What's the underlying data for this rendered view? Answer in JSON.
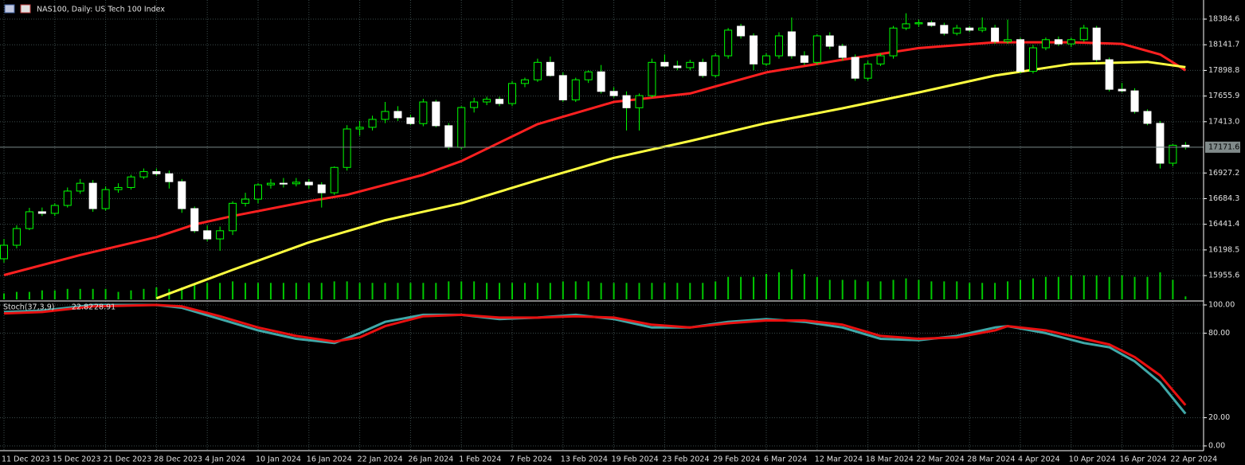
{
  "chart_data": [
    {
      "type": "candlestick",
      "title": "NAS100, Daily:  US Tech 100 Index",
      "categories": [
        "11 Dec 2023",
        null,
        null,
        null,
        "15 Dec 2023",
        null,
        null,
        null,
        "21 Dec 2023",
        null,
        null,
        null,
        "28 Dec 2023",
        null,
        null,
        null,
        "4 Jan 2024",
        null,
        null,
        null,
        "10 Jan 2024",
        null,
        null,
        null,
        "16 Jan 2024",
        null,
        null,
        null,
        "22 Jan 2024",
        null,
        null,
        null,
        "26 Jan 2024",
        null,
        null,
        null,
        "1 Feb 2024",
        null,
        null,
        null,
        "7 Feb 2024",
        null,
        null,
        null,
        "13 Feb 2024",
        null,
        null,
        null,
        "19 Feb 2024",
        null,
        null,
        null,
        "23 Feb 2024",
        null,
        null,
        null,
        "29 Feb 2024",
        null,
        null,
        null,
        "6 Mar 2024",
        null,
        null,
        null,
        "12 Mar 2024",
        null,
        null,
        null,
        "18 Mar 2024",
        null,
        null,
        null,
        "22 Mar 2024",
        null,
        null,
        null,
        "28 Mar 2024",
        null,
        null,
        null,
        "4 Apr 2024",
        null,
        null,
        null,
        "10 Apr 2024",
        null,
        null,
        null,
        "16 Apr 2024",
        null,
        null,
        null,
        "22 Apr 2024",
        null
      ],
      "candles": [
        [
          16115,
          16303,
          16078,
          16243
        ],
        [
          16243,
          16432,
          16213,
          16401
        ],
        [
          16401,
          16597,
          16386,
          16560
        ],
        [
          16560,
          16600,
          16520,
          16545
        ],
        [
          16545,
          16640,
          16520,
          16620
        ],
        [
          16620,
          16790,
          16600,
          16756
        ],
        [
          16756,
          16870,
          16730,
          16830
        ],
        [
          16830,
          16860,
          16560,
          16590
        ],
        [
          16590,
          16800,
          16570,
          16770
        ],
        [
          16770,
          16830,
          16740,
          16790
        ],
        [
          16790,
          16910,
          16770,
          16890
        ],
        [
          16890,
          16970,
          16870,
          16940
        ],
        [
          16940,
          16970,
          16900,
          16920
        ],
        [
          16920,
          16950,
          16780,
          16845
        ],
        [
          16845,
          16870,
          16550,
          16590
        ],
        [
          16590,
          16610,
          16360,
          16380
        ],
        [
          16380,
          16430,
          16280,
          16303
        ],
        [
          16303,
          16420,
          16190,
          16380
        ],
        [
          16380,
          16660,
          16340,
          16640
        ],
        [
          16640,
          16740,
          16610,
          16680
        ],
        [
          16680,
          16830,
          16640,
          16815
        ],
        [
          16815,
          16870,
          16780,
          16830
        ],
        [
          16830,
          16880,
          16790,
          16825
        ],
        [
          16825,
          16880,
          16800,
          16840
        ],
        [
          16840,
          16870,
          16780,
          16815
        ],
        [
          16815,
          16840,
          16600,
          16740
        ],
        [
          16740,
          16990,
          16720,
          16980
        ],
        [
          16980,
          17380,
          16950,
          17344
        ],
        [
          17344,
          17420,
          17280,
          17360
        ],
        [
          17360,
          17470,
          17330,
          17435
        ],
        [
          17435,
          17600,
          17400,
          17510
        ],
        [
          17510,
          17560,
          17420,
          17450
        ],
        [
          17450,
          17480,
          17380,
          17395
        ],
        [
          17395,
          17630,
          17370,
          17600
        ],
        [
          17600,
          17620,
          17360,
          17375
        ],
        [
          17375,
          17400,
          17150,
          17170
        ],
        [
          17170,
          17560,
          17150,
          17547
        ],
        [
          17547,
          17640,
          17500,
          17600
        ],
        [
          17600,
          17650,
          17570,
          17625
        ],
        [
          17625,
          17650,
          17560,
          17585
        ],
        [
          17585,
          17800,
          17560,
          17775
        ],
        [
          17775,
          17830,
          17740,
          17810
        ],
        [
          17810,
          18010,
          17790,
          17975
        ],
        [
          17975,
          18030,
          17840,
          17850
        ],
        [
          17850,
          17880,
          17600,
          17620
        ],
        [
          17620,
          17830,
          17600,
          17810
        ],
        [
          17810,
          17900,
          17780,
          17885
        ],
        [
          17885,
          17950,
          17680,
          17700
        ],
        [
          17700,
          17740,
          17640,
          17660
        ],
        [
          17660,
          17700,
          17330,
          17545
        ],
        [
          17545,
          17680,
          17330,
          17660
        ],
        [
          17660,
          18010,
          17640,
          17975
        ],
        [
          17975,
          18050,
          17930,
          17940
        ],
        [
          17940,
          17990,
          17900,
          17925
        ],
        [
          17925,
          18000,
          17900,
          17975
        ],
        [
          17975,
          18010,
          17830,
          17850
        ],
        [
          17850,
          18060,
          17830,
          18037
        ],
        [
          18037,
          18300,
          18010,
          18280
        ],
        [
          18317,
          18340,
          18200,
          18226
        ],
        [
          18226,
          18250,
          17900,
          17960
        ],
        [
          17960,
          18060,
          17940,
          18037
        ],
        [
          18037,
          18260,
          18010,
          18226
        ],
        [
          18264,
          18400,
          18010,
          18037
        ],
        [
          18037,
          18080,
          17950,
          17975
        ],
        [
          17975,
          18240,
          17950,
          18226
        ],
        [
          18226,
          18260,
          18100,
          18128
        ],
        [
          18128,
          18150,
          17990,
          18022
        ],
        [
          18022,
          18050,
          17800,
          17825
        ],
        [
          17825,
          17990,
          17800,
          17960
        ],
        [
          17960,
          18060,
          17940,
          18037
        ],
        [
          18037,
          18320,
          18010,
          18300
        ],
        [
          18300,
          18440,
          18280,
          18340
        ],
        [
          18340,
          18380,
          18310,
          18350
        ],
        [
          18350,
          18370,
          18310,
          18325
        ],
        [
          18325,
          18350,
          18230,
          18250
        ],
        [
          18250,
          18330,
          18230,
          18300
        ],
        [
          18300,
          18320,
          18260,
          18280
        ],
        [
          18280,
          18400,
          18260,
          18300
        ],
        [
          18300,
          18330,
          18150,
          18173
        ],
        [
          18173,
          18380,
          18150,
          18190
        ],
        [
          18190,
          18210,
          17870,
          17890
        ],
        [
          17890,
          18140,
          17870,
          18113
        ],
        [
          18113,
          18210,
          18090,
          18190
        ],
        [
          18190,
          18220,
          18130,
          18150
        ],
        [
          18150,
          18210,
          18120,
          18190
        ],
        [
          18190,
          18330,
          18170,
          18300
        ],
        [
          18300,
          18320,
          17980,
          18000
        ],
        [
          18000,
          18020,
          17700,
          17720
        ],
        [
          17720,
          17780,
          17690,
          17705
        ],
        [
          17705,
          17730,
          17490,
          17510
        ],
        [
          17510,
          17530,
          17380,
          17397
        ],
        [
          17397,
          17420,
          16970,
          17020
        ],
        [
          17020,
          17200,
          16990,
          17190
        ],
        [
          17190,
          17220,
          17150,
          17171.6
        ]
      ],
      "up_color": "#00ff00",
      "down_color": "#ffffff",
      "volume_color": "#00c800",
      "volume_lim": [
        0,
        400
      ],
      "volume": [
        8,
        10,
        10,
        12,
        12,
        14,
        14,
        14,
        14,
        10,
        12,
        14,
        16,
        14,
        16,
        20,
        22,
        22,
        24,
        22,
        22,
        22,
        22,
        22,
        22,
        22,
        24,
        24,
        22,
        22,
        22,
        22,
        22,
        22,
        22,
        24,
        24,
        24,
        22,
        22,
        22,
        22,
        22,
        22,
        24,
        24,
        24,
        22,
        22,
        22,
        22,
        22,
        22,
        22,
        22,
        22,
        24,
        30,
        30,
        30,
        34,
        36,
        40,
        34,
        30,
        26,
        26,
        26,
        24,
        24,
        26,
        28,
        26,
        24,
        24,
        24,
        22,
        22,
        22,
        24,
        26,
        28,
        30,
        30,
        32,
        32,
        32,
        30,
        32,
        30,
        30,
        36,
        26,
        4
      ],
      "series": [
        {
          "color": "#ff2020",
          "x": [
            0,
            6,
            12,
            15,
            18,
            24,
            27,
            33,
            36,
            42,
            48,
            54,
            60,
            66,
            72,
            78,
            84,
            88,
            91,
            93
          ],
          "values": [
            15960,
            16150,
            16320,
            16440,
            16520,
            16660,
            16720,
            16910,
            17040,
            17390,
            17600,
            17680,
            17880,
            18000,
            18110,
            18165,
            18165,
            18150,
            18050,
            17900
          ]
        },
        {
          "color": "#ffff40",
          "x": [
            12,
            18,
            24,
            30,
            36,
            42,
            48,
            54,
            60,
            66,
            72,
            78,
            84,
            90,
            93
          ],
          "values": [
            15740,
            16010,
            16270,
            16480,
            16640,
            16860,
            17070,
            17230,
            17400,
            17540,
            17690,
            17850,
            17960,
            17980,
            17930
          ]
        }
      ],
      "ylim": [
        15722.6,
        18565.6
      ],
      "yticks": [
        18384.6,
        18141.7,
        17898.8,
        17655.9,
        {
          "value": 17413,
          "label": "17413.0"
        },
        16927.2,
        16684.3,
        16441.4,
        16198.5,
        15955.6
      ],
      "grid": true
    },
    {
      "type": "line",
      "title": "Stoch(37,3,9)",
      "series": [
        {
          "color": "#40a8a8",
          "x": [
            0,
            3,
            7,
            12,
            14,
            17,
            20,
            23,
            26,
            28,
            30,
            33,
            36,
            39,
            42,
            45,
            48,
            51,
            54,
            57,
            60,
            63,
            66,
            69,
            72,
            75,
            78,
            79,
            82,
            85,
            87,
            89,
            91,
            93
          ],
          "values": [
            95,
            96,
            100,
            100,
            98,
            90,
            82,
            76,
            73,
            80,
            88,
            93,
            93,
            90,
            91,
            93,
            90,
            84,
            84,
            88,
            90,
            88,
            84,
            76,
            75,
            78,
            84,
            85,
            80,
            73,
            70,
            60,
            45,
            22.82
          ]
        },
        {
          "color": "#e81010",
          "x": [
            0,
            3,
            7,
            12,
            14,
            17,
            20,
            23,
            26,
            28,
            30,
            33,
            36,
            39,
            42,
            45,
            48,
            51,
            54,
            57,
            60,
            63,
            66,
            69,
            72,
            75,
            78,
            79,
            82,
            85,
            87,
            89,
            91,
            93
          ],
          "values": [
            94,
            95,
            99,
            100,
            99,
            92,
            84,
            78,
            74,
            77,
            85,
            92,
            93,
            91,
            91,
            92,
            91,
            86,
            84,
            87,
            89,
            89,
            86,
            78,
            76,
            77,
            82,
            85,
            82,
            76,
            72,
            63,
            50,
            28.91
          ]
        }
      ],
      "ylim": [
        0,
        100
      ],
      "yticks": [
        {
          "value": 100,
          "label": "100.00"
        },
        {
          "value": 80,
          "label": "80.00"
        },
        {
          "value": 20,
          "label": "20.00"
        },
        {
          "value": 0,
          "label": "0.00"
        }
      ],
      "grid": true
    }
  ]
}
